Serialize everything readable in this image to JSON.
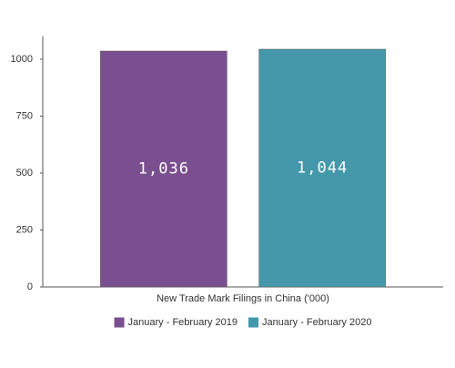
{
  "chart_data": {
    "type": "bar",
    "categories": [
      "New Trade Mark Filings in China ('000)"
    ],
    "series": [
      {
        "name": "January - February 2019",
        "color": "#7a4f8f",
        "values": [
          1036
        ],
        "value_labels": [
          "1,036"
        ]
      },
      {
        "name": "January - February 2020",
        "color": "#4597aa",
        "values": [
          1044
        ],
        "value_labels": [
          "1,044"
        ]
      }
    ],
    "ylim": [
      0,
      1100
    ],
    "yticks": [
      0,
      250,
      500,
      750,
      1000
    ],
    "legend": "bottom"
  }
}
